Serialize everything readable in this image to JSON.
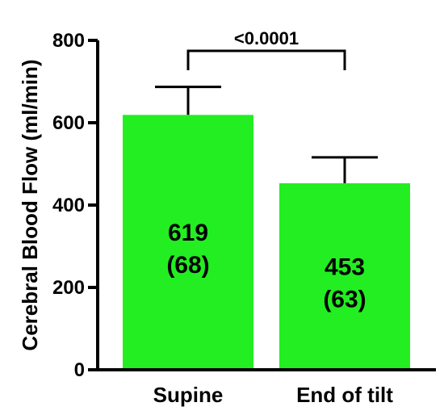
{
  "chart_data": {
    "type": "bar",
    "ylabel": "Cerebral Blood Flow (ml/min)",
    "ylim": [
      0,
      800
    ],
    "yticks": [
      "0",
      "200",
      "400",
      "600",
      "800"
    ],
    "categories": [
      "Supine",
      "End of tilt"
    ],
    "values": [
      619,
      453
    ],
    "errors": [
      68,
      63
    ],
    "bar_labels": [
      {
        "value": "619",
        "sd": "(68)"
      },
      {
        "value": "453",
        "sd": "(63)"
      }
    ],
    "significance": {
      "label": "<0.0001",
      "between": [
        0,
        1
      ]
    },
    "bar_color": "#22ee22",
    "grid": false
  }
}
